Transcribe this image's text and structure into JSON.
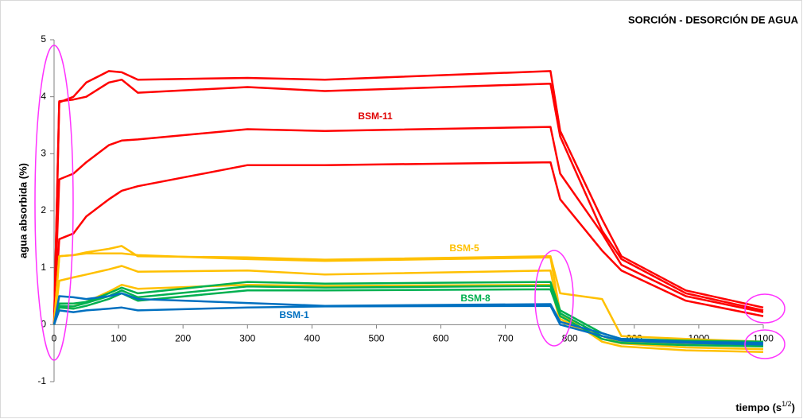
{
  "chart_data": {
    "type": "line",
    "title": "SORCIÓN - DESORCIÓN DE AGUA",
    "y_label": "agua absorbida (%)",
    "x_label": "tiempo (s",
    "x_label_sup": "1/2",
    "x_label_end": ")",
    "x": [
      0,
      8,
      30,
      50,
      85,
      105,
      130,
      300,
      420,
      770,
      785,
      850,
      880,
      980,
      1100
    ],
    "series": [
      {
        "color": "#ff0000",
        "values": [
          0,
          3.9,
          4.0,
          4.25,
          4.45,
          4.43,
          4.3,
          4.33,
          4.3,
          4.45,
          3.4,
          1.85,
          1.2,
          0.6,
          0.3
        ]
      },
      {
        "color": "#ff0000",
        "values": [
          0,
          3.92,
          3.95,
          4.0,
          4.25,
          4.3,
          4.07,
          4.17,
          4.1,
          4.23,
          3.3,
          1.65,
          1.15,
          0.55,
          0.25
        ]
      },
      {
        "color": "#ff0000",
        "values": [
          0,
          2.55,
          2.65,
          2.85,
          3.15,
          3.23,
          3.25,
          3.43,
          3.4,
          3.47,
          2.65,
          1.6,
          1.05,
          0.5,
          0.22
        ]
      },
      {
        "color": "#ff0000",
        "values": [
          0,
          1.5,
          1.6,
          1.9,
          2.2,
          2.35,
          2.43,
          2.8,
          2.8,
          2.85,
          2.2,
          1.3,
          0.95,
          0.42,
          0.15
        ]
      },
      {
        "color": "#ffc000",
        "values": [
          0,
          1.2,
          1.22,
          1.27,
          1.33,
          1.38,
          1.2,
          1.18,
          1.14,
          1.2,
          0.55,
          0.45,
          -0.2,
          -0.25,
          -0.3
        ]
      },
      {
        "color": "#ffc000",
        "values": [
          0,
          1.2,
          1.22,
          1.25,
          1.25,
          1.25,
          1.22,
          1.15,
          1.12,
          1.18,
          0.2,
          -0.3,
          -0.38,
          -0.45,
          -0.48
        ]
      },
      {
        "color": "#ffc000",
        "values": [
          0,
          0.77,
          0.83,
          0.88,
          0.97,
          1.03,
          0.93,
          0.95,
          0.88,
          0.95,
          0.1,
          -0.25,
          -0.33,
          -0.4,
          -0.43
        ]
      },
      {
        "color": "#ffc000",
        "values": [
          0,
          0.3,
          0.32,
          0.4,
          0.58,
          0.7,
          0.63,
          0.7,
          0.68,
          0.7,
          0.05,
          -0.2,
          -0.3,
          -0.35,
          -0.38
        ]
      },
      {
        "color": "#00b050",
        "values": [
          0,
          0.37,
          0.37,
          0.4,
          0.55,
          0.65,
          0.55,
          0.75,
          0.72,
          0.75,
          0.25,
          -0.15,
          -0.25,
          -0.28,
          -0.3
        ]
      },
      {
        "color": "#00b050",
        "values": [
          0,
          0.33,
          0.32,
          0.38,
          0.5,
          0.6,
          0.48,
          0.67,
          0.65,
          0.68,
          0.2,
          -0.2,
          -0.28,
          -0.32,
          -0.35
        ]
      },
      {
        "color": "#00b050",
        "values": [
          0,
          0.3,
          0.28,
          0.33,
          0.45,
          0.55,
          0.42,
          0.6,
          0.6,
          0.62,
          0.15,
          -0.25,
          -0.32,
          -0.36,
          -0.38
        ]
      },
      {
        "color": "#0070c0",
        "values": [
          0,
          0.5,
          0.48,
          0.45,
          0.5,
          0.55,
          0.45,
          0.38,
          0.33,
          0.36,
          0.05,
          -0.15,
          -0.25,
          -0.3,
          -0.32
        ]
      },
      {
        "color": "#0070c0",
        "values": [
          0,
          0.25,
          0.22,
          0.25,
          0.28,
          0.3,
          0.25,
          0.3,
          0.32,
          0.33,
          0.0,
          -0.2,
          -0.28,
          -0.32,
          -0.35
        ]
      }
    ],
    "annotations": [
      {
        "text": "BSM-11",
        "color": "#e00000"
      },
      {
        "text": "BSM-5",
        "color": "#ffc000"
      },
      {
        "text": "BSM-8",
        "color": "#00b050"
      },
      {
        "text": "BSM-1",
        "color": "#0070c0"
      }
    ],
    "xlim": [
      0,
      1100
    ],
    "xticks": [
      0,
      100,
      200,
      300,
      400,
      500,
      600,
      700,
      800,
      900,
      1000,
      1100
    ],
    "ylim": [
      -1,
      5
    ],
    "yticks": [
      -1,
      0,
      1,
      2,
      3,
      4,
      5
    ]
  }
}
